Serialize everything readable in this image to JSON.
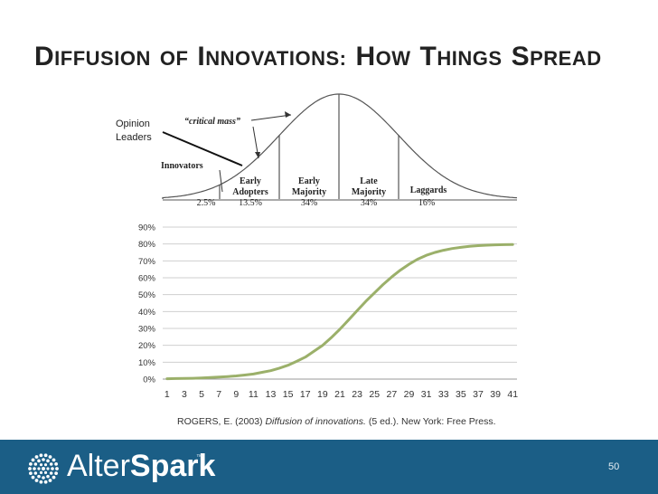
{
  "slide": {
    "title_words": [
      {
        "cap": "D",
        "rest": "IFFUSION"
      },
      {
        "cap": "",
        "rest": "OF"
      },
      {
        "cap": "I",
        "rest": "NNOVATIONS:"
      },
      {
        "cap": "H",
        "rest": "OW"
      },
      {
        "cap": "T",
        "rest": "HINGS"
      },
      {
        "cap": "S",
        "rest": "PREAD"
      }
    ],
    "opinion_label": "Opinion Leaders",
    "citation": {
      "prefix": "ROGERS, E. (2003) ",
      "italic": "Diffusion of innovations.",
      "suffix": " (5 ed.). New York: Free Press."
    },
    "page_number": "50"
  },
  "brand": {
    "name_light": "Alter",
    "name_bold": "Spark",
    "trademark": "™",
    "footer_color": "#1b5e86",
    "logo_icon": "starburst-dots-icon"
  },
  "chart_data": [
    {
      "type": "area",
      "curve": "bell",
      "labels": {
        "critical_mass": "“critical mass”",
        "innovators": "Innovators"
      },
      "segments": [
        {
          "name": "Innovators",
          "share": "2.5%"
        },
        {
          "name": "Early Adopters",
          "share": "13.5%"
        },
        {
          "name": "Early Majority",
          "share": "34%"
        },
        {
          "name": "Late Majority",
          "share": "34%"
        },
        {
          "name": "Laggards",
          "share": "16%"
        }
      ]
    },
    {
      "type": "line",
      "ylim": [
        0,
        90
      ],
      "y_ticks": [
        "0%",
        "10%",
        "20%",
        "30%",
        "40%",
        "50%",
        "60%",
        "70%",
        "80%",
        "90%"
      ],
      "x_ticks": [
        "1",
        "3",
        "5",
        "7",
        "9",
        "11",
        "13",
        "15",
        "17",
        "19",
        "21",
        "23",
        "25",
        "27",
        "29",
        "31",
        "33",
        "35",
        "37",
        "39",
        "41"
      ],
      "xlim": [
        1,
        41
      ],
      "grid": "horizontal",
      "line_color": "#9bb06a",
      "series": [
        {
          "x": [
            1,
            2,
            3,
            4,
            5,
            6,
            7,
            8,
            9,
            10,
            11,
            12,
            13,
            14,
            15,
            16,
            17,
            18,
            19,
            20,
            21,
            22,
            23,
            24,
            25,
            26,
            27,
            28,
            29,
            30,
            31,
            32,
            33,
            34,
            35,
            36,
            37,
            38,
            39,
            40,
            41
          ],
          "values": [
            0.2,
            0.3,
            0.4,
            0.5,
            0.7,
            0.9,
            1.2,
            1.5,
            1.9,
            2.4,
            3.0,
            4.0,
            5.0,
            6.5,
            8.2,
            10.5,
            13.0,
            16.5,
            20.0,
            24.5,
            29.5,
            35.0,
            40.5,
            46.0,
            51.0,
            56.0,
            60.5,
            64.5,
            68.0,
            71.0,
            73.3,
            75.0,
            76.3,
            77.3,
            78.0,
            78.6,
            79.0,
            79.3,
            79.5,
            79.6,
            79.7
          ]
        }
      ]
    }
  ]
}
